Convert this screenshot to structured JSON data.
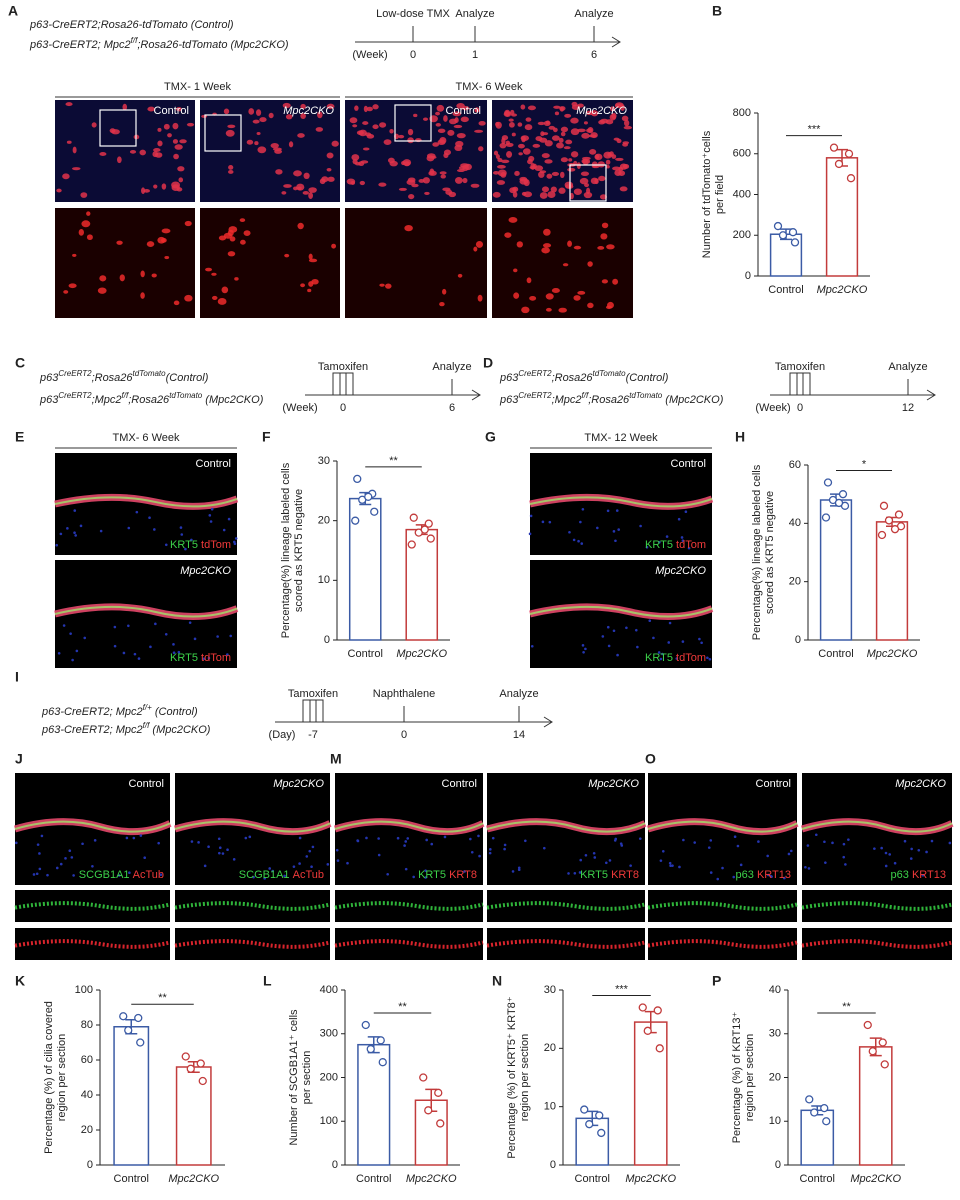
{
  "panel_labels": [
    "A",
    "B",
    "C",
    "D",
    "E",
    "F",
    "G",
    "H",
    "I",
    "J",
    "M",
    "O",
    "K",
    "L",
    "N",
    "P"
  ],
  "timelines": [
    {
      "genotypes": [
        [
          "p63-CreERT2;Rosa26-tdTomato (Control)"
        ],
        [
          "p63-CreERT2; Mpc2",
          "f/f",
          ";Rosa26-tdTomato (Mpc2CKO)"
        ]
      ],
      "unit": "(Week)",
      "events": [
        {
          "label": "Low-dose TMX",
          "time": 0
        },
        {
          "label": "Analyze",
          "time": 1
        },
        {
          "label": "Analyze",
          "time": 6
        }
      ]
    },
    {
      "genotypes": [
        [
          "p63",
          "CreERT2",
          ";Rosa26",
          "tdTomato",
          "(Control)"
        ],
        [
          "p63",
          "CreERT2",
          ";Mpc2",
          "f/f",
          ";Rosa26",
          "tdTomato",
          " (Mpc2CKO)"
        ]
      ],
      "unit": "(Week)",
      "events": [
        {
          "label": "Tamoxifen",
          "time": 0
        },
        {
          "label": "Analyze",
          "time": 6
        }
      ]
    },
    {
      "genotypes": [
        [
          "p63",
          "CreERT2",
          ";Rosa26",
          "tdTomato",
          "(Control)"
        ],
        [
          "p63",
          "CreERT2",
          ";Mpc2",
          "f/f",
          ";Rosa26",
          "tdTomato",
          " (Mpc2CKO)"
        ]
      ],
      "unit": "(Week)",
      "events": [
        {
          "label": "Tamoxifen",
          "time": 0
        },
        {
          "label": "Analyze",
          "time": 12
        }
      ]
    },
    {
      "genotypes": [
        [
          "p63-CreERT2; Mpc2",
          "f/+",
          " (Control)"
        ],
        [
          "p63-CreERT2; Mpc2",
          "f/f",
          " (Mpc2CKO)"
        ]
      ],
      "unit": "(Day)",
      "events": [
        {
          "label": "Tamoxifen",
          "time": -7
        },
        {
          "label": "Naphthalene",
          "time": 0
        },
        {
          "label": "Analyze",
          "time": 14
        }
      ]
    }
  ],
  "image_panels": [
    {
      "headers": [
        "TMX- 1 Week",
        "TMX- 6 Week"
      ],
      "labels": [
        "Control",
        "Mpc2CKO",
        "Control",
        "Mpc2CKO"
      ]
    },
    {
      "headers": [
        "TMX- 6 Week"
      ],
      "labels": [
        "Control",
        "Mpc2CKO"
      ],
      "markers": [
        "KRT5",
        "tdTom"
      ]
    },
    {
      "headers": [
        "TMX- 12 Week"
      ],
      "labels": [
        "Control",
        "Mpc2CKO"
      ],
      "markers": [
        "KRT5",
        "tdTom"
      ]
    },
    {
      "labels": [
        "Control",
        "Mpc2CKO"
      ],
      "markers": [
        "SCGB1A1",
        "AcTub"
      ]
    },
    {
      "labels": [
        "Control",
        "Mpc2CKO"
      ],
      "markers": [
        "KRT5",
        "KRT8"
      ]
    },
    {
      "labels": [
        "Control",
        "Mpc2CKO"
      ],
      "markers": [
        "p63",
        "KRT13"
      ]
    }
  ],
  "chart_data": [
    {
      "type": "bar",
      "ylabel": [
        "Number of tdTomato⁺cells",
        "per field"
      ],
      "categories": [
        "Control",
        "Mpc2CKO"
      ],
      "colors": [
        "#3b5ba5",
        "#c23b3b"
      ],
      "values": [
        205,
        580
      ],
      "errors": [
        25,
        40
      ],
      "points": [
        [
          245,
          215,
          200,
          165
        ],
        [
          630,
          600,
          550,
          480
        ]
      ],
      "significance": "***",
      "ylim": [
        0,
        800
      ],
      "yticks": [
        0,
        200,
        400,
        600,
        800
      ]
    },
    {
      "type": "bar",
      "ylabel": [
        "Percentage(%) lineage labeled cells",
        "scored as KRT5 negative"
      ],
      "categories": [
        "Control",
        "Mpc2CKO"
      ],
      "colors": [
        "#3b5ba5",
        "#c23b3b"
      ],
      "values": [
        23.7,
        18.5
      ],
      "errors": [
        1,
        0.8
      ],
      "points": [
        [
          27,
          24.5,
          23.5,
          21.5,
          20,
          24
        ],
        [
          20.5,
          19.5,
          18,
          17,
          16,
          18.5
        ]
      ],
      "significance": "**",
      "ylim": [
        0,
        30
      ],
      "yticks": [
        0,
        10,
        20,
        30
      ]
    },
    {
      "type": "bar",
      "ylabel": [
        "Percentage(%) lineage labeled cells",
        "scored as KRT5 negative"
      ],
      "categories": [
        "Control",
        "Mpc2CKO"
      ],
      "colors": [
        "#3b5ba5",
        "#c23b3b"
      ],
      "values": [
        48,
        40.5
      ],
      "errors": [
        2,
        1.5
      ],
      "points": [
        [
          54,
          50,
          48,
          46,
          42,
          47
        ],
        [
          46,
          43,
          41,
          39,
          36,
          38
        ]
      ],
      "significance": "*",
      "ylim": [
        0,
        60
      ],
      "yticks": [
        0,
        20,
        40,
        60
      ]
    },
    {
      "type": "bar",
      "ylabel": [
        "Percentage (%) of cilia covered",
        "region per section"
      ],
      "categories": [
        "Control",
        "Mpc2CKO"
      ],
      "colors": [
        "#3b5ba5",
        "#c23b3b"
      ],
      "values": [
        79,
        56
      ],
      "errors": [
        4,
        3
      ],
      "points": [
        [
          85,
          84,
          77,
          70
        ],
        [
          62,
          58,
          55,
          48
        ]
      ],
      "significance": "**",
      "ylim": [
        0,
        100
      ],
      "yticks": [
        0,
        20,
        40,
        60,
        80,
        100
      ]
    },
    {
      "type": "bar",
      "ylabel": [
        "Number of SCGB1A1⁺ cells",
        "per section"
      ],
      "categories": [
        "Control",
        "Mpc2CKO"
      ],
      "colors": [
        "#3b5ba5",
        "#c23b3b"
      ],
      "values": [
        275,
        148
      ],
      "errors": [
        18,
        25
      ],
      "points": [
        [
          320,
          285,
          265,
          235
        ],
        [
          200,
          165,
          125,
          95
        ]
      ],
      "significance": "**",
      "ylim": [
        0,
        400
      ],
      "yticks": [
        0,
        100,
        200,
        300,
        400
      ]
    },
    {
      "type": "bar",
      "ylabel": [
        "Percentage (%) of KRT5⁺ KRT8⁺",
        "region per section"
      ],
      "categories": [
        "Control",
        "Mpc2CKO"
      ],
      "colors": [
        "#3b5ba5",
        "#c23b3b"
      ],
      "values": [
        8,
        24.5
      ],
      "errors": [
        1.2,
        1.8
      ],
      "points": [
        [
          9.5,
          8.5,
          7,
          5.5
        ],
        [
          27,
          26.5,
          23,
          20
        ]
      ],
      "significance": "***",
      "ylim": [
        0,
        30
      ],
      "yticks": [
        0,
        10,
        20,
        30
      ]
    },
    {
      "type": "bar",
      "ylabel": [
        "Percentage (%) of KRT13⁺",
        "region per section"
      ],
      "categories": [
        "Control",
        "Mpc2CKO"
      ],
      "colors": [
        "#3b5ba5",
        "#c23b3b"
      ],
      "values": [
        12.5,
        27
      ],
      "errors": [
        1,
        2
      ],
      "points": [
        [
          15,
          13,
          12,
          10
        ],
        [
          32,
          28,
          26,
          23
        ]
      ],
      "significance": "**",
      "ylim": [
        0,
        40
      ],
      "yticks": [
        0,
        10,
        20,
        30,
        40
      ]
    }
  ]
}
